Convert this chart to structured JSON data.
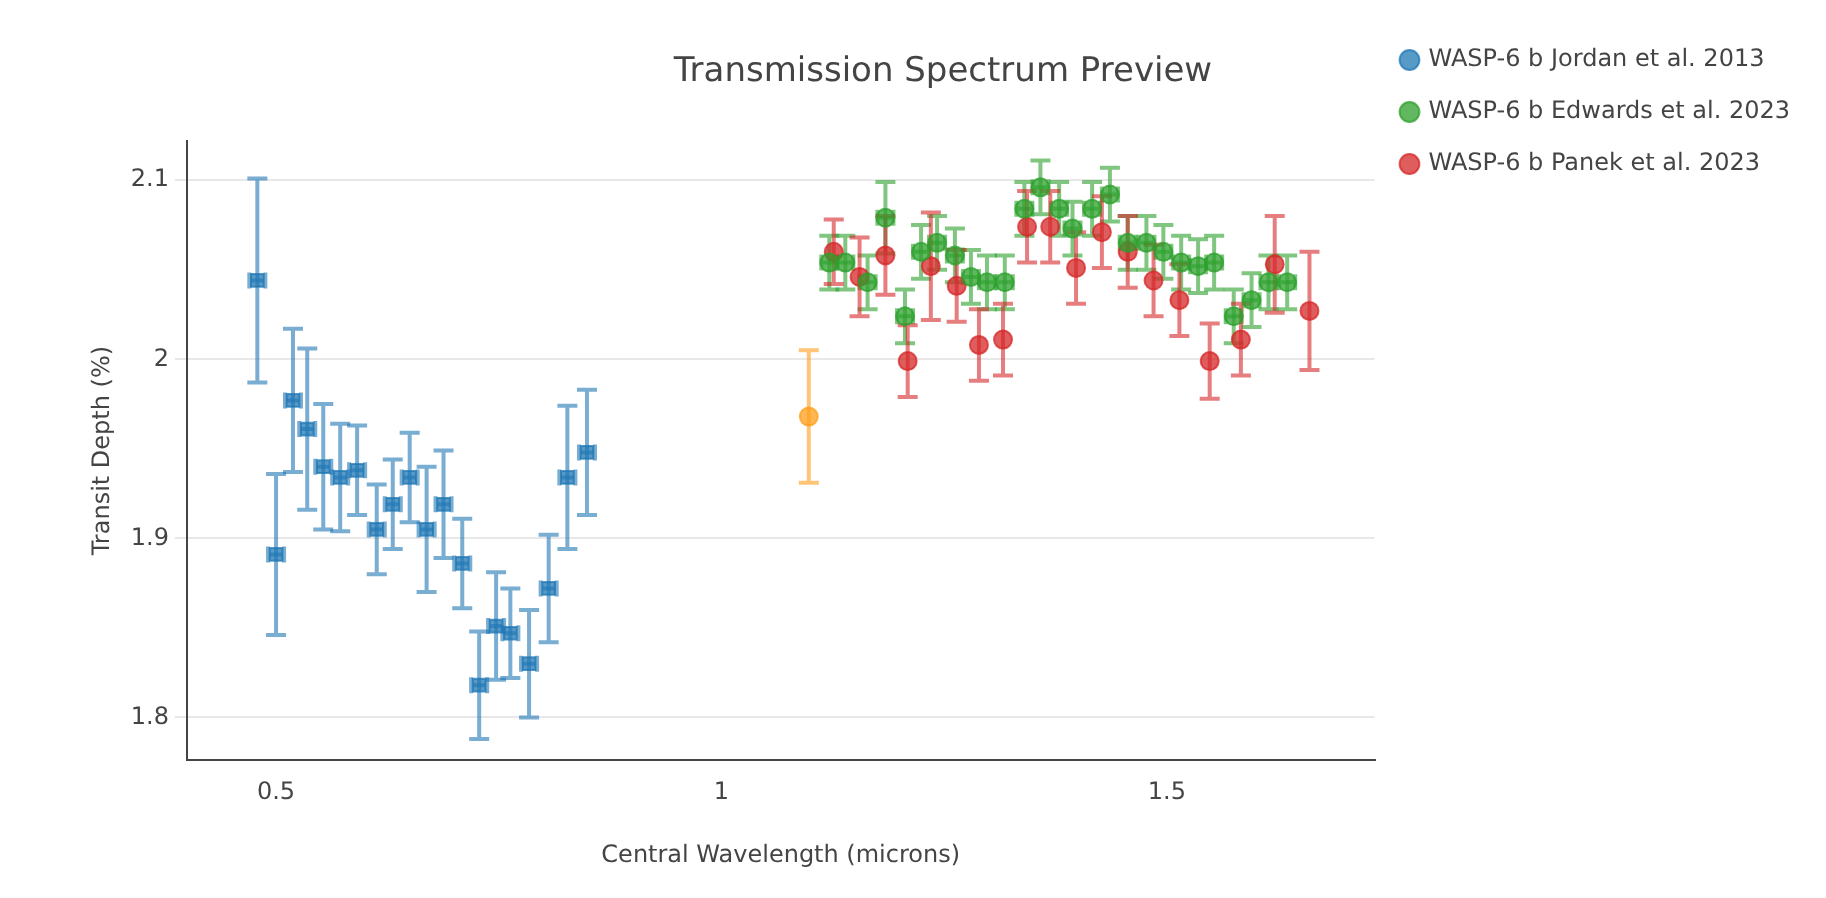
{
  "chart_data": {
    "type": "scatter",
    "title": "Transmission Spectrum Preview",
    "xlabel": "Central Wavelength (microns)",
    "ylabel": "Transit Depth (%)",
    "xlim": [
      0.4,
      1.733
    ],
    "xticks": [
      0.5,
      1,
      1.5
    ],
    "ylim": [
      1.776,
      2.122
    ],
    "yticks": [
      1.8,
      1.9,
      2,
      2.1
    ],
    "grid": "y",
    "legend": "top right",
    "series": [
      {
        "name": "WASP-6 b Jordan et al. 2013",
        "color": "#1f77b4",
        "marker": "square",
        "x": [
          0.479,
          0.5,
          0.519,
          0.535,
          0.553,
          0.572,
          0.591,
          0.613,
          0.631,
          0.65,
          0.669,
          0.688,
          0.709,
          0.728,
          0.747,
          0.763,
          0.784,
          0.806,
          0.827,
          0.849
        ],
        "values": [
          2.044,
          1.891,
          1.977,
          1.961,
          1.94,
          1.934,
          1.938,
          1.905,
          1.919,
          1.934,
          1.905,
          1.919,
          1.886,
          1.818,
          1.851,
          1.847,
          1.83,
          1.872,
          1.934,
          1.948
        ],
        "errors": [
          0.057,
          0.045,
          0.04,
          0.045,
          0.035,
          0.03,
          0.025,
          0.025,
          0.025,
          0.025,
          0.035,
          0.03,
          0.025,
          0.03,
          0.03,
          0.025,
          0.03,
          0.03,
          0.04,
          0.035
        ],
        "xerrors": [
          0.009,
          0.009,
          0.009,
          0.009,
          0.009,
          0.009,
          0.009,
          0.009,
          0.009,
          0.009,
          0.009,
          0.009,
          0.009,
          0.009,
          0.009,
          0.009,
          0.009,
          0.009,
          0.009,
          0.009
        ]
      },
      {
        "name": "WASP-6 b Edwards et al. 2023",
        "color": "#2ca02c",
        "marker": "circle",
        "x": [
          1.121,
          1.139,
          1.164,
          1.184,
          1.206,
          1.224,
          1.242,
          1.262,
          1.28,
          1.298,
          1.318,
          1.34,
          1.358,
          1.379,
          1.394,
          1.416,
          1.436,
          1.456,
          1.477,
          1.496,
          1.516,
          1.535,
          1.553,
          1.575,
          1.595,
          1.614,
          1.635
        ],
        "values": [
          2.054,
          2.054,
          2.043,
          2.079,
          2.024,
          2.06,
          2.065,
          2.058,
          2.046,
          2.043,
          2.043,
          2.084,
          2.096,
          2.084,
          2.073,
          2.084,
          2.092,
          2.065,
          2.065,
          2.06,
          2.054,
          2.052,
          2.054,
          2.024,
          2.033,
          2.043,
          2.043
        ],
        "errors": [
          0.015,
          0.015,
          0.015,
          0.02,
          0.015,
          0.015,
          0.015,
          0.015,
          0.015,
          0.015,
          0.015,
          0.015,
          0.015,
          0.015,
          0.015,
          0.015,
          0.015,
          0.015,
          0.015,
          0.015,
          0.015,
          0.015,
          0.015,
          0.015,
          0.015,
          0.015,
          0.015
        ],
        "xerrors": [
          0.009,
          0.009,
          0.009,
          0.009,
          0.009,
          0.009,
          0.009,
          0.009,
          0.009,
          0.009,
          0.009,
          0.009,
          0.009,
          0.009,
          0.009,
          0.009,
          0.009,
          0.009,
          0.009,
          0.009,
          0.009,
          0.009,
          0.009,
          0.009,
          0.009,
          0.009,
          0.009
        ]
      },
      {
        "name": "WASP-6 b Panek et al. 2023",
        "color": "#d62728",
        "marker": "circle",
        "x": [
          1.126,
          1.155,
          1.184,
          1.209,
          1.235,
          1.264,
          1.289,
          1.316,
          1.343,
          1.369,
          1.398,
          1.427,
          1.456,
          1.485,
          1.514,
          1.548,
          1.583,
          1.621,
          1.66
        ],
        "values": [
          2.06,
          2.046,
          2.058,
          1.999,
          2.052,
          2.041,
          2.008,
          2.011,
          2.074,
          2.074,
          2.051,
          2.071,
          2.06,
          2.044,
          2.033,
          1.999,
          2.011,
          2.053,
          2.027
        ],
        "errors": [
          0.018,
          0.022,
          0.022,
          0.02,
          0.03,
          0.02,
          0.02,
          0.02,
          0.02,
          0.02,
          0.02,
          0.02,
          0.02,
          0.02,
          0.02,
          0.021,
          0.02,
          0.027,
          0.033
        ]
      },
      {
        "color": "#ff9f1c",
        "marker": "circle",
        "x": [
          1.098
        ],
        "values": [
          1.968
        ],
        "errors": [
          0.037
        ]
      }
    ]
  }
}
